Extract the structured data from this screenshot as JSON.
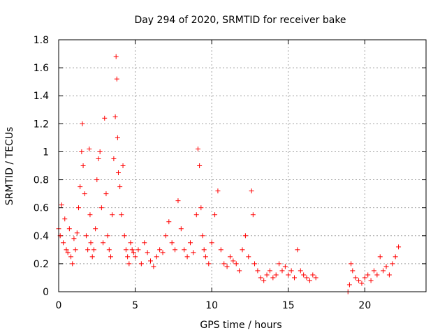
{
  "chart_data": {
    "type": "scatter",
    "title": "Day 294 of 2020, SRMTID for receiver bake",
    "xlabel": "GPS time / hours",
    "ylabel": "SRMTID / TECUs",
    "xlim": [
      0,
      24
    ],
    "ylim": [
      0,
      1.8
    ],
    "xticks": [
      0,
      5,
      10,
      15,
      20
    ],
    "yticks": [
      0,
      0.2,
      0.4,
      0.6,
      0.8,
      1,
      1.2,
      1.4,
      1.6,
      1.8
    ],
    "xtick_labels": [
      "0",
      "5",
      "10",
      "15",
      "20"
    ],
    "ytick_labels": [
      "0",
      "0.2",
      "0.4",
      "0.6",
      "0.8",
      "1",
      "1.2",
      "1.4",
      "1.6",
      "1.8"
    ],
    "grid": true,
    "marker": "+",
    "series": [
      {
        "name": "SRMTID",
        "color": "#ff0000",
        "x": [
          0.0,
          0.1,
          0.2,
          0.3,
          0.4,
          0.5,
          0.6,
          0.7,
          0.8,
          0.9,
          1.0,
          1.1,
          1.2,
          1.3,
          1.4,
          1.5,
          1.55,
          1.6,
          1.7,
          1.8,
          1.9,
          2.0,
          2.05,
          2.1,
          2.2,
          2.3,
          2.4,
          2.5,
          2.6,
          2.7,
          2.8,
          2.9,
          3.0,
          3.1,
          3.2,
          3.3,
          3.4,
          3.5,
          3.6,
          3.7,
          3.75,
          3.8,
          3.85,
          3.9,
          4.0,
          4.1,
          4.2,
          4.3,
          4.4,
          4.5,
          4.6,
          4.7,
          4.8,
          4.9,
          5.0,
          5.2,
          5.4,
          5.6,
          5.8,
          6.0,
          6.2,
          6.4,
          6.6,
          6.8,
          7.0,
          7.2,
          7.4,
          7.6,
          7.8,
          8.0,
          8.2,
          8.4,
          8.6,
          8.8,
          9.0,
          9.1,
          9.2,
          9.3,
          9.4,
          9.5,
          9.6,
          9.8,
          10.0,
          10.2,
          10.4,
          10.6,
          10.8,
          11.0,
          11.2,
          11.4,
          11.6,
          11.8,
          12.0,
          12.2,
          12.4,
          12.6,
          12.7,
          12.8,
          13.0,
          13.2,
          13.4,
          13.6,
          13.8,
          14.0,
          14.2,
          14.4,
          14.6,
          14.8,
          15.0,
          15.2,
          15.4,
          15.6,
          15.8,
          16.0,
          16.2,
          16.4,
          16.6,
          16.8,
          18.9,
          19.0,
          19.1,
          19.2,
          19.4,
          19.6,
          19.8,
          20.0,
          20.2,
          20.4,
          20.6,
          20.8,
          21.0,
          21.2,
          21.4,
          21.6,
          21.8,
          22.0,
          22.2
        ],
        "y": [
          0.45,
          0.4,
          0.62,
          0.35,
          0.52,
          0.3,
          0.28,
          0.45,
          0.25,
          0.2,
          0.38,
          0.3,
          0.42,
          0.6,
          0.75,
          1.0,
          1.2,
          0.9,
          0.7,
          0.4,
          0.3,
          1.02,
          0.55,
          0.35,
          0.25,
          0.3,
          0.45,
          0.8,
          0.95,
          1.0,
          0.6,
          0.35,
          1.24,
          0.7,
          0.4,
          0.3,
          0.25,
          0.55,
          0.95,
          1.25,
          1.68,
          1.52,
          1.1,
          0.85,
          0.75,
          0.55,
          0.9,
          0.4,
          0.3,
          0.25,
          0.2,
          0.35,
          0.3,
          0.28,
          0.25,
          0.3,
          0.2,
          0.35,
          0.28,
          0.22,
          0.18,
          0.25,
          0.3,
          0.28,
          0.4,
          0.5,
          0.35,
          0.3,
          0.65,
          0.45,
          0.3,
          0.25,
          0.35,
          0.28,
          0.55,
          1.02,
          0.9,
          0.6,
          0.4,
          0.3,
          0.25,
          0.2,
          0.35,
          0.55,
          0.72,
          0.3,
          0.2,
          0.18,
          0.25,
          0.22,
          0.2,
          0.15,
          0.3,
          0.4,
          0.25,
          0.72,
          0.55,
          0.2,
          0.15,
          0.1,
          0.08,
          0.12,
          0.15,
          0.1,
          0.12,
          0.2,
          0.15,
          0.18,
          0.12,
          0.15,
          0.1,
          0.3,
          0.15,
          0.12,
          0.1,
          0.08,
          0.12,
          0.1,
          0.0,
          0.05,
          0.2,
          0.15,
          0.1,
          0.08,
          0.06,
          0.1,
          0.12,
          0.08,
          0.15,
          0.12,
          0.25,
          0.15,
          0.18,
          0.12,
          0.2,
          0.25,
          0.32
        ]
      }
    ]
  }
}
